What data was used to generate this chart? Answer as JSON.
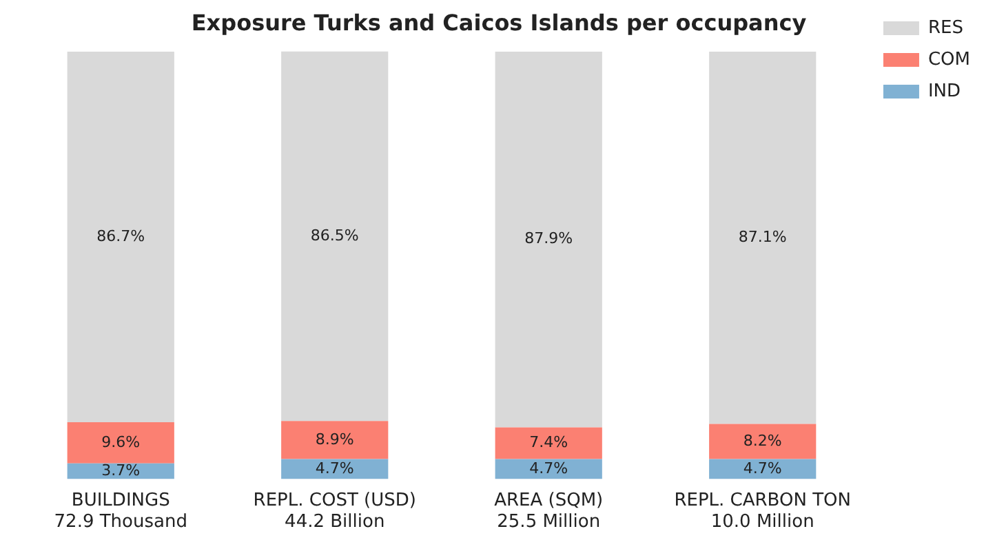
{
  "chart_data": {
    "type": "bar",
    "title": "Exposure Turks and Caicos Islands per occupancy",
    "categories": [
      "BUILDINGS\n72.9 Thousand",
      "REPL. COST (USD)\n44.2 Billion",
      "AREA (SQM)\n25.5 Million",
      "REPL. CARBON TON\n10.0 Million"
    ],
    "stacked": true,
    "tick_labels": "x",
    "legend": "top right",
    "grid": false,
    "series": [
      {
        "name": "IND",
        "color": "#80b1d3",
        "values": [
          3.7,
          4.7,
          4.7,
          4.7
        ],
        "value_labels": [
          "3.7%",
          "4.7%",
          "4.7%",
          "4.7%"
        ]
      },
      {
        "name": "COM",
        "color": "#fb8072",
        "values": [
          9.6,
          8.9,
          7.4,
          8.2
        ],
        "value_labels": [
          "9.6%",
          "8.9%",
          "7.4%",
          "8.2%"
        ]
      },
      {
        "name": "RES",
        "color": "#d9d9d9",
        "values": [
          86.7,
          86.5,
          87.9,
          87.1
        ],
        "value_labels": [
          "86.7%",
          "86.5%",
          "87.9%",
          "87.1%"
        ]
      }
    ]
  }
}
